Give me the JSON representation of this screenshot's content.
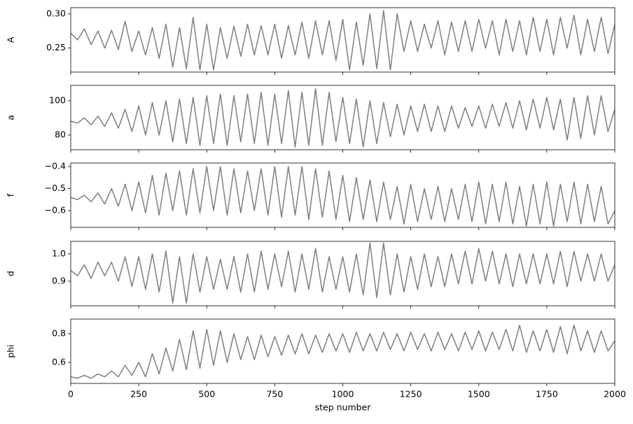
{
  "chart_data": [
    {
      "type": "line",
      "ylabel": "A",
      "x": [
        0,
        25,
        50,
        75,
        100,
        125,
        150,
        175,
        200,
        225,
        250,
        275,
        300,
        325,
        350,
        375,
        400,
        425,
        450,
        475,
        500,
        525,
        550,
        575,
        600,
        625,
        650,
        675,
        700,
        725,
        750,
        775,
        800,
        825,
        850,
        875,
        900,
        925,
        950,
        975,
        1000,
        1025,
        1050,
        1075,
        1100,
        1125,
        1150,
        1175,
        1200,
        1225,
        1250,
        1275,
        1300,
        1325,
        1350,
        1375,
        1400,
        1425,
        1450,
        1475,
        1500,
        1525,
        1550,
        1575,
        1600,
        1625,
        1650,
        1675,
        1700,
        1725,
        1750,
        1775,
        1800,
        1825,
        1850,
        1875,
        1900,
        1925,
        1950,
        1975,
        2000
      ],
      "values": [
        0.272,
        0.262,
        0.278,
        0.255,
        0.275,
        0.25,
        0.276,
        0.248,
        0.289,
        0.245,
        0.275,
        0.24,
        0.28,
        0.235,
        0.285,
        0.222,
        0.28,
        0.22,
        0.295,
        0.218,
        0.285,
        0.218,
        0.28,
        0.235,
        0.282,
        0.238,
        0.285,
        0.24,
        0.283,
        0.24,
        0.285,
        0.235,
        0.283,
        0.24,
        0.288,
        0.235,
        0.29,
        0.24,
        0.29,
        0.232,
        0.292,
        0.218,
        0.288,
        0.225,
        0.3,
        0.22,
        0.305,
        0.218,
        0.3,
        0.245,
        0.29,
        0.245,
        0.285,
        0.25,
        0.29,
        0.24,
        0.288,
        0.245,
        0.29,
        0.245,
        0.292,
        0.25,
        0.29,
        0.24,
        0.292,
        0.245,
        0.29,
        0.24,
        0.295,
        0.245,
        0.292,
        0.24,
        0.295,
        0.25,
        0.298,
        0.24,
        0.292,
        0.245,
        0.295,
        0.242,
        0.285
      ],
      "color": "#7f7f7f",
      "xlim": [
        0,
        2000
      ],
      "ylim": [
        0.215,
        0.309
      ],
      "yticks": [
        0.25,
        {
          "value": 0.3,
          "label": "0.30"
        }
      ]
    },
    {
      "type": "line",
      "ylabel": "a",
      "x": [
        0,
        25,
        50,
        75,
        100,
        125,
        150,
        175,
        200,
        225,
        250,
        275,
        300,
        325,
        350,
        375,
        400,
        425,
        450,
        475,
        500,
        525,
        550,
        575,
        600,
        625,
        650,
        675,
        700,
        725,
        750,
        775,
        800,
        825,
        850,
        875,
        900,
        925,
        950,
        975,
        1000,
        1025,
        1050,
        1075,
        1100,
        1125,
        1150,
        1175,
        1200,
        1225,
        1250,
        1275,
        1300,
        1325,
        1350,
        1375,
        1400,
        1425,
        1450,
        1475,
        1500,
        1525,
        1550,
        1575,
        1600,
        1625,
        1650,
        1675,
        1700,
        1725,
        1750,
        1775,
        1800,
        1825,
        1850,
        1875,
        1900,
        1925,
        1950,
        1975,
        2000
      ],
      "values": [
        88,
        87,
        90,
        86,
        91,
        85,
        93,
        84,
        95,
        82,
        97,
        80,
        99,
        80,
        100,
        76,
        101,
        75,
        102,
        74,
        103,
        75,
        104,
        74,
        103,
        76,
        104,
        75,
        105,
        74,
        104,
        75,
        106,
        73,
        105,
        74,
        107,
        74,
        105,
        76,
        102,
        75,
        101,
        73,
        100,
        75,
        99,
        79,
        98,
        80,
        97,
        82,
        98,
        82,
        97,
        82,
        97,
        84,
        96,
        85,
        97,
        84,
        98,
        85,
        99,
        84,
        100,
        83,
        101,
        84,
        102,
        83,
        101,
        77,
        102,
        78,
        103,
        80,
        103,
        82,
        95
      ],
      "color": "#7f7f7f",
      "xlim": [
        0,
        2000
      ],
      "ylim": [
        71.4,
        109
      ],
      "yticks": [
        80,
        100
      ]
    },
    {
      "type": "line",
      "ylabel": "f",
      "x": [
        0,
        25,
        50,
        75,
        100,
        125,
        150,
        175,
        200,
        225,
        250,
        275,
        300,
        325,
        350,
        375,
        400,
        425,
        450,
        475,
        500,
        525,
        550,
        575,
        600,
        625,
        650,
        675,
        700,
        725,
        750,
        775,
        800,
        825,
        850,
        875,
        900,
        925,
        950,
        975,
        1000,
        1025,
        1050,
        1075,
        1100,
        1125,
        1150,
        1175,
        1200,
        1225,
        1250,
        1275,
        1300,
        1325,
        1350,
        1375,
        1400,
        1425,
        1450,
        1475,
        1500,
        1525,
        1550,
        1575,
        1600,
        1625,
        1650,
        1675,
        1700,
        1725,
        1750,
        1775,
        1800,
        1825,
        1850,
        1875,
        1900,
        1925,
        1950,
        1975,
        2000
      ],
      "values": [
        -0.54,
        -0.55,
        -0.53,
        -0.56,
        -0.52,
        -0.57,
        -0.5,
        -0.58,
        -0.48,
        -0.6,
        -0.47,
        -0.61,
        -0.44,
        -0.62,
        -0.43,
        -0.6,
        -0.42,
        -0.62,
        -0.41,
        -0.61,
        -0.4,
        -0.6,
        -0.4,
        -0.62,
        -0.41,
        -0.61,
        -0.42,
        -0.6,
        -0.41,
        -0.62,
        -0.4,
        -0.63,
        -0.4,
        -0.62,
        -0.4,
        -0.64,
        -0.41,
        -0.63,
        -0.42,
        -0.64,
        -0.44,
        -0.65,
        -0.45,
        -0.64,
        -0.46,
        -0.65,
        -0.47,
        -0.64,
        -0.49,
        -0.66,
        -0.48,
        -0.65,
        -0.5,
        -0.64,
        -0.49,
        -0.65,
        -0.5,
        -0.64,
        -0.48,
        -0.65,
        -0.47,
        -0.66,
        -0.48,
        -0.65,
        -0.47,
        -0.66,
        -0.49,
        -0.67,
        -0.48,
        -0.66,
        -0.47,
        -0.67,
        -0.48,
        -0.65,
        -0.47,
        -0.66,
        -0.48,
        -0.65,
        -0.49,
        -0.66,
        -0.6
      ],
      "color": "#7f7f7f",
      "xlim": [
        0,
        2000
      ],
      "ylim": [
        -0.676,
        -0.384
      ],
      "yticks": [
        {
          "value": -0.6,
          "label": "−0.6"
        },
        {
          "value": -0.5,
          "label": "−0.5"
        },
        {
          "value": -0.4,
          "label": "−0.4"
        }
      ]
    },
    {
      "type": "line",
      "ylabel": "d",
      "x": [
        0,
        25,
        50,
        75,
        100,
        125,
        150,
        175,
        200,
        225,
        250,
        275,
        300,
        325,
        350,
        375,
        400,
        425,
        450,
        475,
        500,
        525,
        550,
        575,
        600,
        625,
        650,
        675,
        700,
        725,
        750,
        775,
        800,
        825,
        850,
        875,
        900,
        925,
        950,
        975,
        1000,
        1025,
        1050,
        1075,
        1100,
        1125,
        1150,
        1175,
        1200,
        1225,
        1250,
        1275,
        1300,
        1325,
        1350,
        1375,
        1400,
        1425,
        1450,
        1475,
        1500,
        1525,
        1550,
        1575,
        1600,
        1625,
        1650,
        1675,
        1700,
        1725,
        1750,
        1775,
        1800,
        1825,
        1850,
        1875,
        1900,
        1925,
        1950,
        1975,
        2000
      ],
      "values": [
        0.94,
        0.92,
        0.96,
        0.91,
        0.97,
        0.92,
        0.97,
        0.9,
        0.99,
        0.88,
        0.99,
        0.87,
        1.0,
        0.86,
        1.01,
        0.82,
        0.99,
        0.82,
        1.0,
        0.86,
        0.99,
        0.87,
        0.98,
        0.87,
        0.99,
        0.86,
        1.0,
        0.86,
        1.01,
        0.87,
        1.0,
        0.88,
        1.01,
        0.86,
        1.0,
        0.87,
        1.02,
        0.86,
        0.99,
        0.87,
        0.99,
        0.86,
        1.0,
        0.85,
        1.04,
        0.84,
        1.04,
        0.85,
        1.0,
        0.86,
        0.99,
        0.87,
        1.0,
        0.88,
        0.99,
        0.88,
        1.0,
        0.89,
        1.01,
        0.89,
        1.02,
        0.9,
        1.01,
        0.89,
        1.0,
        0.88,
        1.0,
        0.89,
        1.0,
        0.89,
        1.0,
        0.89,
        1.01,
        0.88,
        1.01,
        0.9,
        1.0,
        0.9,
        1.0,
        0.9,
        0.96
      ],
      "color": "#7f7f7f",
      "xlim": [
        0,
        2000
      ],
      "ylim": [
        0.81,
        1.046
      ],
      "yticks": [
        0.9,
        {
          "value": 1.0,
          "label": "1.0"
        }
      ]
    },
    {
      "type": "line",
      "ylabel": "phi",
      "xlabel": "step number",
      "x": [
        0,
        25,
        50,
        75,
        100,
        125,
        150,
        175,
        200,
        225,
        250,
        275,
        300,
        325,
        350,
        375,
        400,
        425,
        450,
        475,
        500,
        525,
        550,
        575,
        600,
        625,
        650,
        675,
        700,
        725,
        750,
        775,
        800,
        825,
        850,
        875,
        900,
        925,
        950,
        975,
        1000,
        1025,
        1050,
        1075,
        1100,
        1125,
        1150,
        1175,
        1200,
        1225,
        1250,
        1275,
        1300,
        1325,
        1350,
        1375,
        1400,
        1425,
        1450,
        1475,
        1500,
        1525,
        1550,
        1575,
        1600,
        1625,
        1650,
        1675,
        1700,
        1725,
        1750,
        1775,
        1800,
        1825,
        1850,
        1875,
        1900,
        1925,
        1950,
        1975,
        2000
      ],
      "values": [
        0.5,
        0.49,
        0.51,
        0.49,
        0.52,
        0.5,
        0.54,
        0.5,
        0.58,
        0.51,
        0.6,
        0.5,
        0.66,
        0.52,
        0.7,
        0.54,
        0.76,
        0.55,
        0.82,
        0.56,
        0.83,
        0.58,
        0.82,
        0.6,
        0.8,
        0.62,
        0.78,
        0.62,
        0.79,
        0.64,
        0.78,
        0.65,
        0.79,
        0.66,
        0.8,
        0.66,
        0.79,
        0.67,
        0.8,
        0.68,
        0.8,
        0.67,
        0.81,
        0.68,
        0.8,
        0.68,
        0.81,
        0.69,
        0.8,
        0.68,
        0.81,
        0.69,
        0.8,
        0.68,
        0.81,
        0.69,
        0.8,
        0.68,
        0.81,
        0.69,
        0.82,
        0.68,
        0.81,
        0.69,
        0.83,
        0.68,
        0.86,
        0.67,
        0.82,
        0.68,
        0.83,
        0.67,
        0.85,
        0.66,
        0.86,
        0.68,
        0.82,
        0.67,
        0.82,
        0.68,
        0.75
      ],
      "color": "#7f7f7f",
      "xlim": [
        0,
        2000
      ],
      "ylim": [
        0.454,
        0.902
      ],
      "yticks": [
        0.6,
        0.8
      ],
      "xticks": [
        0,
        250,
        500,
        750,
        1000,
        1250,
        1500,
        1750,
        2000
      ]
    }
  ]
}
